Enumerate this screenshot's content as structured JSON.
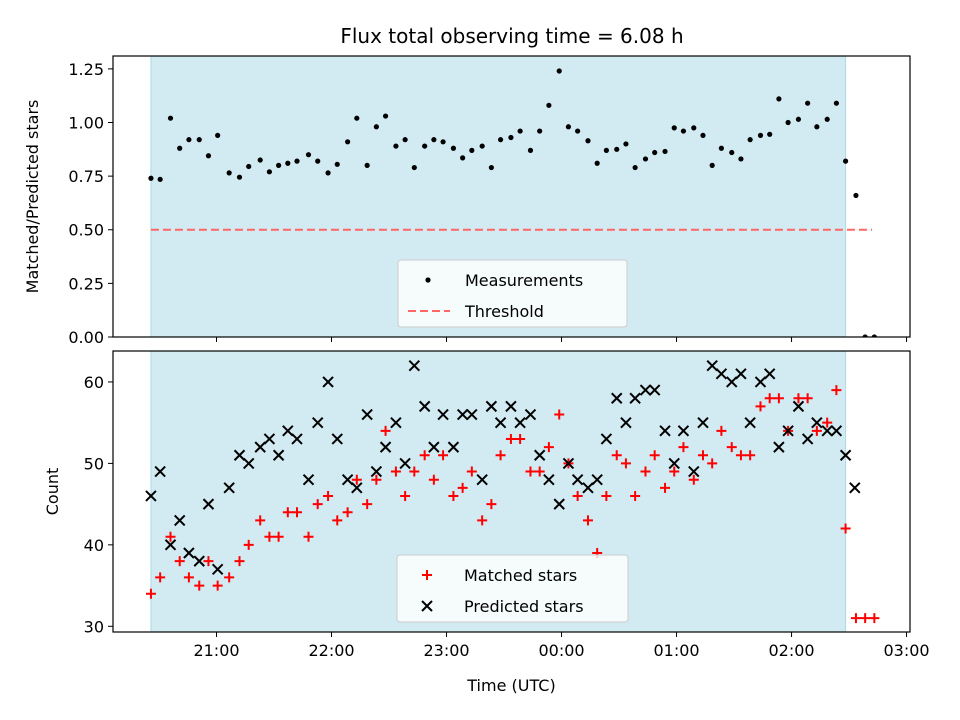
{
  "title": "Flux total observing time = 6.08 h",
  "chart_data": [
    {
      "type": "scatter",
      "ylabel": "Matched/Predicted stars",
      "xlim": [
        20.1,
        27.03
      ],
      "ylim": [
        0,
        1.31
      ],
      "yticks": [
        0,
        0.25,
        0.5,
        0.75,
        1.0,
        1.25
      ],
      "ytick_labels": [
        "0.00",
        "0.25",
        "0.50",
        "0.75",
        "1.00",
        "1.25"
      ],
      "xticks": [
        21,
        22,
        23,
        24,
        25,
        26,
        27
      ],
      "observing_window": [
        20.43,
        26.47
      ],
      "window_color": "#add8e6",
      "legend": {
        "placement": "lower center",
        "items": [
          "Measurements",
          "Threshold"
        ]
      },
      "threshold": {
        "name": "Threshold",
        "value": 0.5,
        "x_range": [
          20.43,
          26.7
        ],
        "color": "#ff6666",
        "style": "dashed"
      },
      "series": [
        {
          "name": "Measurements",
          "marker": "dot",
          "color": "#000000",
          "x": [
            20.43,
            20.51,
            20.6,
            20.68,
            20.76,
            20.85,
            20.93,
            21.01,
            21.11,
            21.2,
            21.28,
            21.38,
            21.46,
            21.54,
            21.62,
            21.7,
            21.8,
            21.88,
            21.97,
            22.05,
            22.14,
            22.22,
            22.31,
            22.39,
            22.47,
            22.56,
            22.64,
            22.72,
            22.81,
            22.89,
            22.97,
            23.06,
            23.14,
            23.22,
            23.31,
            23.39,
            23.47,
            23.56,
            23.64,
            23.73,
            23.81,
            23.89,
            23.98,
            24.06,
            24.14,
            24.23,
            24.31,
            24.39,
            24.48,
            24.56,
            24.64,
            24.73,
            24.81,
            24.9,
            24.98,
            25.06,
            25.15,
            25.23,
            25.31,
            25.39,
            25.48,
            25.56,
            25.64,
            25.73,
            25.81,
            25.89,
            25.97,
            26.06,
            26.14,
            26.22,
            26.31,
            26.39,
            26.47,
            26.56,
            26.64,
            26.72
          ],
          "y": [
            0.74,
            0.735,
            1.02,
            0.88,
            0.92,
            0.92,
            0.845,
            0.94,
            0.765,
            0.745,
            0.795,
            0.825,
            0.77,
            0.8,
            0.81,
            0.82,
            0.85,
            0.82,
            0.765,
            0.805,
            0.91,
            1.02,
            0.8,
            0.98,
            1.03,
            0.89,
            0.92,
            0.79,
            0.89,
            0.92,
            0.91,
            0.88,
            0.835,
            0.87,
            0.89,
            0.79,
            0.92,
            0.93,
            0.96,
            0.87,
            0.96,
            1.08,
            1.24,
            0.98,
            0.96,
            0.915,
            0.81,
            0.87,
            0.875,
            0.9,
            0.79,
            0.83,
            0.86,
            0.865,
            0.975,
            0.96,
            0.975,
            0.94,
            0.8,
            0.88,
            0.86,
            0.83,
            0.92,
            0.94,
            0.945,
            1.11,
            1.0,
            1.015,
            1.09,
            0.98,
            1.015,
            1.09,
            0.82,
            0.66,
            0.0,
            0.0
          ]
        }
      ]
    },
    {
      "type": "scatter",
      "ylabel": "Count",
      "xlabel": "Time (UTC)",
      "xlim": [
        20.1,
        27.03
      ],
      "ylim": [
        29.3,
        63.8
      ],
      "yticks": [
        30,
        40,
        50,
        60
      ],
      "ytick_labels": [
        "30",
        "40",
        "50",
        "60"
      ],
      "xticks": [
        21,
        22,
        23,
        24,
        25,
        26,
        27
      ],
      "xtick_labels": [
        "21:00",
        "22:00",
        "23:00",
        "00:00",
        "01:00",
        "02:00",
        "03:00"
      ],
      "observing_window": [
        20.43,
        26.47
      ],
      "window_color": "#add8e6",
      "legend": {
        "placement": "lower center",
        "items": [
          "Matched stars",
          "Predicted stars"
        ]
      },
      "series": [
        {
          "name": "Matched stars",
          "marker": "plus",
          "color": "#ff0000",
          "x": [
            20.43,
            20.51,
            20.6,
            20.68,
            20.76,
            20.85,
            20.93,
            21.01,
            21.11,
            21.2,
            21.28,
            21.38,
            21.46,
            21.54,
            21.62,
            21.7,
            21.8,
            21.88,
            21.97,
            22.05,
            22.14,
            22.22,
            22.31,
            22.39,
            22.47,
            22.56,
            22.64,
            22.72,
            22.81,
            22.89,
            22.97,
            23.06,
            23.14,
            23.22,
            23.31,
            23.39,
            23.47,
            23.56,
            23.64,
            23.73,
            23.81,
            23.89,
            23.98,
            24.06,
            24.14,
            24.23,
            24.31,
            24.39,
            24.48,
            24.56,
            24.64,
            24.73,
            24.81,
            24.9,
            24.98,
            25.06,
            25.15,
            25.23,
            25.31,
            25.39,
            25.48,
            25.56,
            25.64,
            25.73,
            25.81,
            25.89,
            25.97,
            26.06,
            26.14,
            26.22,
            26.31,
            26.39,
            26.47,
            26.56,
            26.64,
            26.72
          ],
          "y": [
            34,
            36,
            41,
            38,
            36,
            35,
            38,
            35,
            36,
            38,
            40,
            43,
            41,
            41,
            44,
            44,
            41,
            45,
            46,
            43,
            44,
            48,
            45,
            48,
            54,
            49,
            46,
            49,
            51,
            48,
            51,
            46,
            47,
            49,
            43,
            45,
            51,
            53,
            53,
            49,
            49,
            52,
            56,
            50,
            46,
            43,
            39,
            46,
            51,
            50,
            46,
            49,
            51,
            47,
            49,
            52,
            48,
            51,
            50,
            54,
            52,
            51,
            51,
            57,
            58,
            58,
            54,
            58,
            58,
            54,
            55,
            59,
            42,
            31,
            31,
            31
          ]
        },
        {
          "name": "Predicted stars",
          "marker": "x",
          "color": "#000000",
          "x": [
            20.43,
            20.51,
            20.6,
            20.68,
            20.76,
            20.85,
            20.93,
            21.01,
            21.11,
            21.2,
            21.28,
            21.38,
            21.46,
            21.54,
            21.62,
            21.7,
            21.8,
            21.88,
            21.97,
            22.05,
            22.14,
            22.22,
            22.31,
            22.39,
            22.47,
            22.56,
            22.64,
            22.72,
            22.81,
            22.89,
            22.97,
            23.06,
            23.14,
            23.22,
            23.31,
            23.39,
            23.47,
            23.56,
            23.64,
            23.73,
            23.81,
            23.89,
            23.98,
            24.06,
            24.14,
            24.23,
            24.31,
            24.39,
            24.48,
            24.56,
            24.64,
            24.73,
            24.81,
            24.9,
            24.98,
            25.06,
            25.15,
            25.23,
            25.31,
            25.39,
            25.48,
            25.56,
            25.64,
            25.73,
            25.81,
            25.89,
            25.97,
            26.06,
            26.14,
            26.22,
            26.31,
            26.39,
            26.47
          ],
          "y": [
            46,
            49,
            40,
            43,
            39,
            38,
            45,
            37,
            47,
            51,
            50,
            52,
            53,
            51,
            54,
            53,
            48,
            55,
            60,
            53,
            48,
            47,
            56,
            49,
            52,
            55,
            50,
            62,
            57,
            52,
            56,
            52,
            56,
            56,
            48,
            57,
            55,
            57,
            55,
            56,
            51,
            48,
            45,
            50,
            48,
            47,
            48,
            53,
            58,
            55,
            58,
            59,
            59,
            54,
            50,
            54,
            49,
            55,
            62,
            61,
            60,
            61,
            55,
            60,
            61,
            52,
            54,
            57,
            53,
            55,
            54,
            54,
            51
          ]
        }
      ]
    }
  ],
  "predicted_partial_point": {
    "x": 26.55,
    "y": 47
  }
}
